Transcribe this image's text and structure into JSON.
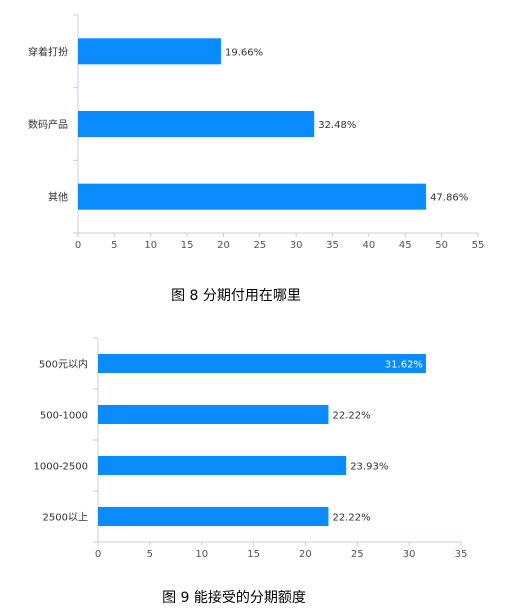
{
  "chart_data": [
    {
      "type": "bar",
      "orientation": "horizontal",
      "categories": [
        "穿着打扮",
        "数码产品",
        "其他"
      ],
      "values": [
        19.66,
        32.48,
        47.86
      ],
      "value_labels": [
        "19.66%",
        "32.48%",
        "47.86%"
      ],
      "xlim": [
        0,
        55
      ],
      "x_ticks": [
        0,
        5,
        10,
        15,
        20,
        25,
        30,
        35,
        40,
        45,
        50,
        55
      ],
      "grid": false,
      "bar_color": "#0a8cff",
      "caption": "图 8 分期付用在哪里"
    },
    {
      "type": "bar",
      "orientation": "horizontal",
      "categories": [
        "500元以内",
        "500-1000",
        "1000-2500",
        "2500以上"
      ],
      "values": [
        31.62,
        22.22,
        23.93,
        22.22
      ],
      "value_labels": [
        "31.62%",
        "22.22%",
        "23.93%",
        "22.22%"
      ],
      "xlim": [
        0,
        35
      ],
      "x_ticks": [
        0,
        5,
        10,
        15,
        20,
        25,
        30,
        35
      ],
      "grid": false,
      "bar_color": "#0a8cff",
      "caption": "图 9 能接受的分期额度"
    }
  ]
}
